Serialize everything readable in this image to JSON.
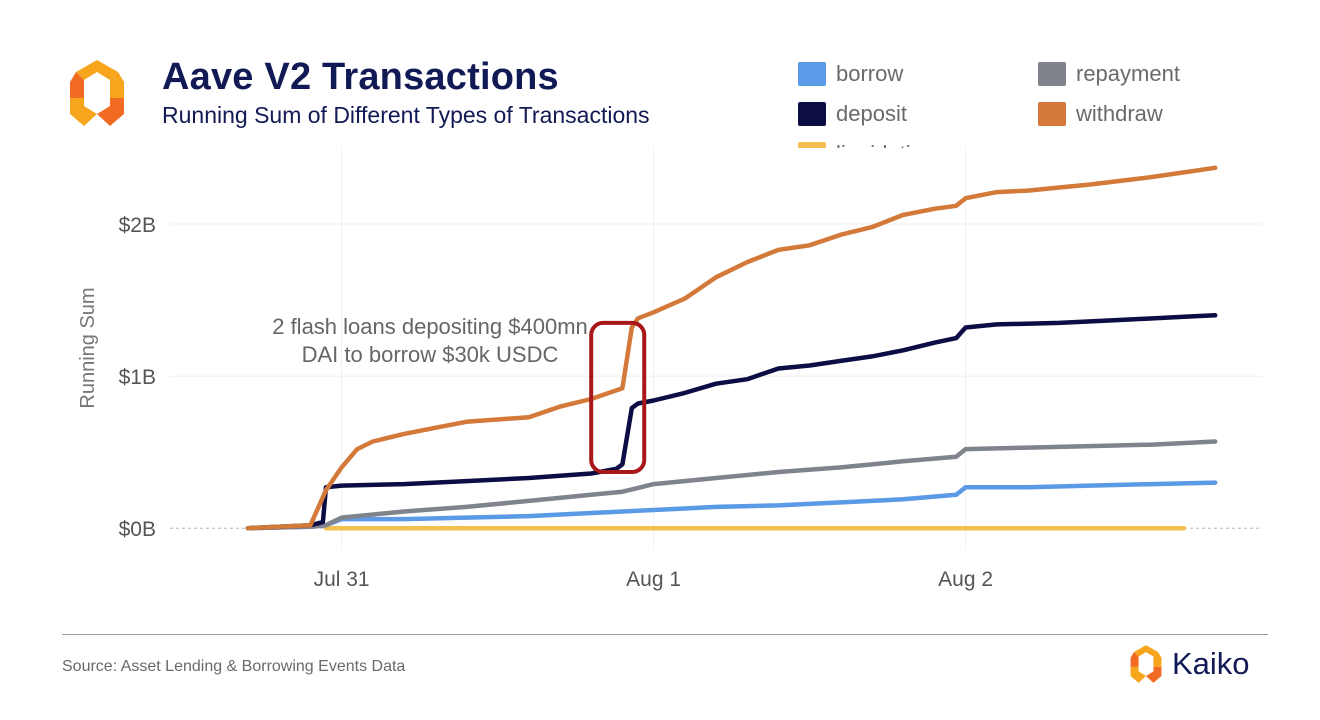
{
  "header": {
    "title": "Aave V2 Transactions",
    "subtitle": "Running Sum of Different Types of Transactions"
  },
  "footer": {
    "source": "Source: Asset Lending & Borrowing Events Data",
    "brand": "Kaiko"
  },
  "chart_data": {
    "type": "line",
    "ylabel": "Running Sum",
    "xlabel": "",
    "ylim": [
      -0.13,
      2.5
    ],
    "y_ticks": [
      0,
      1,
      2
    ],
    "y_tick_labels": [
      "$0B",
      "$1B",
      "$2B"
    ],
    "x_ticks": [
      31,
      32,
      33
    ],
    "x_tick_labels": [
      "Jul 31",
      "Aug 1",
      "Aug 2"
    ],
    "xlim": [
      30.45,
      33.95
    ],
    "grid": true,
    "legend_position": "top-right",
    "annotation": {
      "lines": [
        "2 flash loans depositing $400mn",
        "DAI to borrow $30k USDC"
      ],
      "highlight_x": [
        31.8,
        31.97
      ],
      "highlight_y": [
        0.37,
        1.35
      ]
    },
    "series": [
      {
        "name": "borrow",
        "color": "#5b9ae6",
        "x": [
          30.7,
          30.9,
          30.95,
          31.0,
          31.1,
          31.2,
          31.4,
          31.6,
          31.8,
          32.0,
          32.1,
          32.2,
          32.4,
          32.6,
          32.8,
          32.97,
          33.0,
          33.2,
          33.4,
          33.6,
          33.8
        ],
        "y": [
          0,
          0.01,
          0.02,
          0.06,
          0.06,
          0.06,
          0.07,
          0.08,
          0.1,
          0.12,
          0.13,
          0.14,
          0.15,
          0.17,
          0.19,
          0.22,
          0.27,
          0.27,
          0.28,
          0.29,
          0.3
        ]
      },
      {
        "name": "deposit",
        "color": "#0d0d45",
        "x": [
          30.7,
          30.9,
          30.94,
          30.95,
          31.0,
          31.2,
          31.4,
          31.6,
          31.8,
          31.88,
          31.9,
          31.93,
          31.95,
          32.0,
          32.1,
          32.2,
          32.3,
          32.4,
          32.5,
          32.6,
          32.7,
          32.8,
          32.9,
          32.97,
          33.0,
          33.1,
          33.3,
          33.5,
          33.7,
          33.8
        ],
        "y": [
          0,
          0.02,
          0.04,
          0.27,
          0.28,
          0.29,
          0.31,
          0.33,
          0.36,
          0.39,
          0.42,
          0.79,
          0.82,
          0.84,
          0.89,
          0.95,
          0.98,
          1.05,
          1.07,
          1.1,
          1.13,
          1.17,
          1.22,
          1.25,
          1.32,
          1.34,
          1.35,
          1.37,
          1.39,
          1.4
        ]
      },
      {
        "name": "repayment",
        "color": "#7f838c",
        "x": [
          30.7,
          30.9,
          30.95,
          31.0,
          31.2,
          31.4,
          31.6,
          31.8,
          31.9,
          32.0,
          32.2,
          32.4,
          32.6,
          32.8,
          32.97,
          33.0,
          33.2,
          33.4,
          33.6,
          33.8
        ],
        "y": [
          0,
          0.01,
          0.02,
          0.07,
          0.11,
          0.14,
          0.18,
          0.22,
          0.24,
          0.29,
          0.33,
          0.37,
          0.4,
          0.44,
          0.47,
          0.52,
          0.53,
          0.54,
          0.55,
          0.57
        ]
      },
      {
        "name": "withdraw",
        "color": "#d37a3a",
        "x": [
          30.7,
          30.9,
          30.95,
          31.0,
          31.05,
          31.1,
          31.2,
          31.3,
          31.4,
          31.6,
          31.7,
          31.8,
          31.9,
          31.93,
          31.95,
          32.0,
          32.1,
          32.2,
          32.3,
          32.4,
          32.5,
          32.6,
          32.7,
          32.8,
          32.9,
          32.97,
          33.0,
          33.1,
          33.2,
          33.3,
          33.4,
          33.6,
          33.8
        ],
        "y": [
          0,
          0.02,
          0.25,
          0.4,
          0.52,
          0.57,
          0.62,
          0.66,
          0.7,
          0.73,
          0.8,
          0.85,
          0.92,
          1.32,
          1.38,
          1.42,
          1.51,
          1.65,
          1.75,
          1.83,
          1.86,
          1.93,
          1.98,
          2.06,
          2.1,
          2.12,
          2.17,
          2.21,
          2.22,
          2.24,
          2.26,
          2.31,
          2.37
        ]
      },
      {
        "name": "liquidation",
        "color": "#f2c04e",
        "x": [
          30.95,
          33.7
        ],
        "y": [
          0,
          0
        ]
      }
    ]
  }
}
